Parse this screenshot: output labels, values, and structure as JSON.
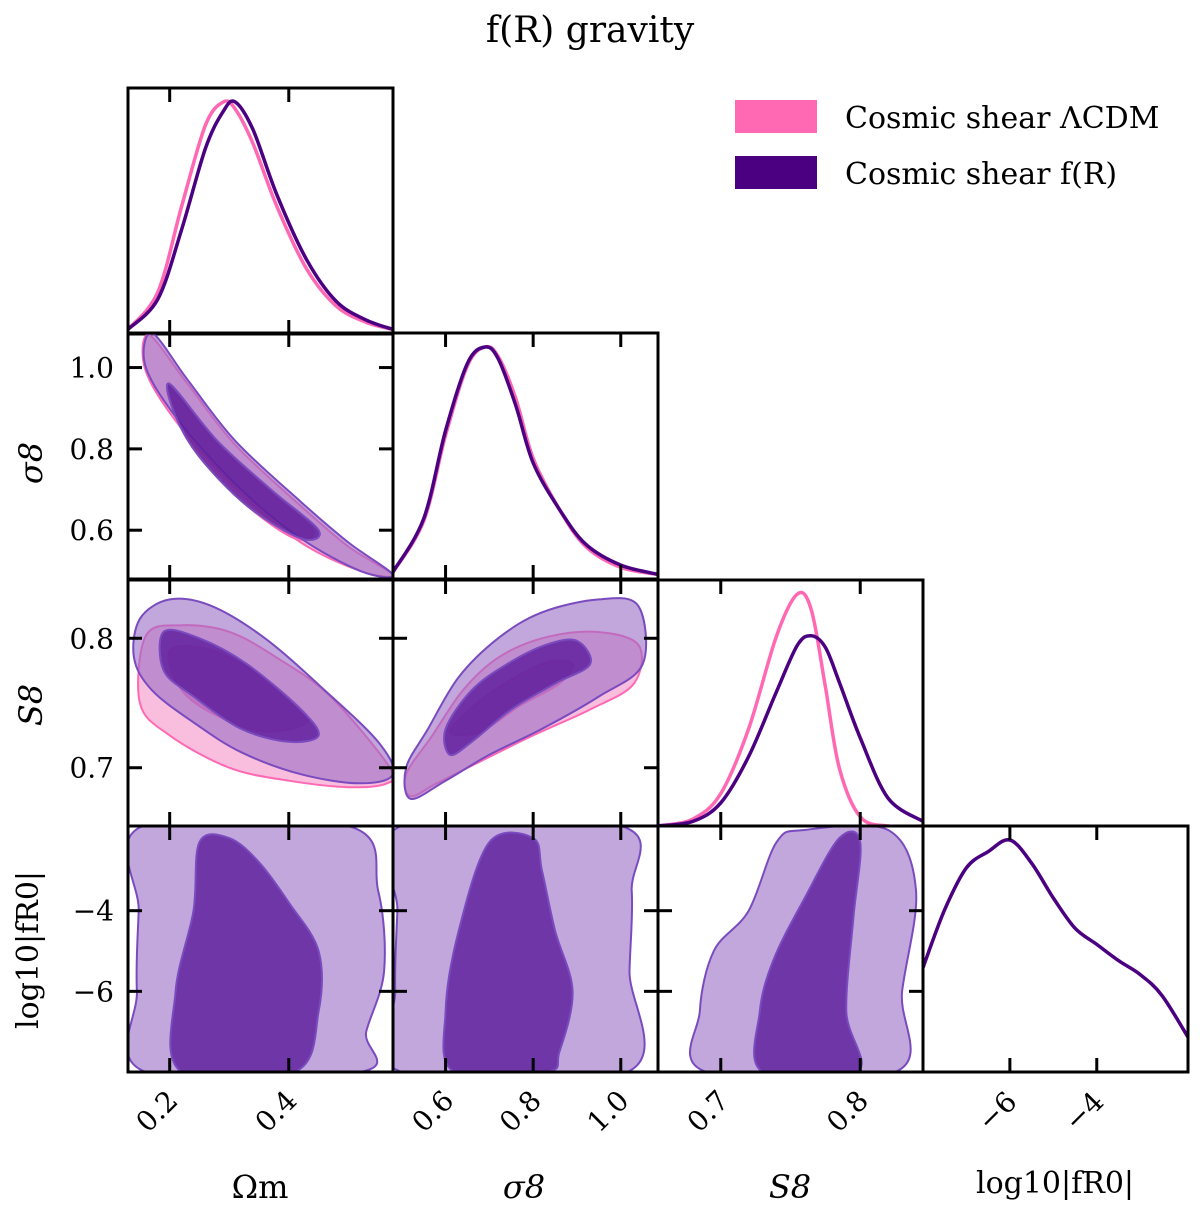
{
  "title": "f(R) gravity",
  "legend": {
    "placement": "top-right",
    "entries": [
      {
        "label": "Cosmic shear ΛCDM",
        "color": "#ff69b4"
      },
      {
        "label": "Cosmic shear f(R)",
        "color": "#4b0082"
      }
    ]
  },
  "colors": {
    "lcdm_line": "#ff69b4",
    "lcdm_outer_fill": "#f7a8d3",
    "lcdm_inner_fill": "#f06bb7",
    "fr_line": "#4b0082",
    "fr_contour_edge": "#7a4bbf",
    "fr_outer_fill": "#9a6dc5",
    "fr_inner_fill": "#5a1a9a"
  },
  "chart_data": {
    "type": "triangle (corner) plot",
    "parameters": [
      {
        "name": "Omega_m",
        "label": "Ωm",
        "range": [
          0.13,
          0.575
        ],
        "ticks": [
          0.2,
          0.4
        ],
        "tick_labels": [
          "0.2",
          "0.4"
        ]
      },
      {
        "name": "sigma_8",
        "label": "σ8",
        "range": [
          0.48,
          1.085
        ],
        "ticks": [
          0.6,
          0.8,
          1.0
        ],
        "tick_labels": [
          "0.6",
          "0.8",
          "1.0"
        ]
      },
      {
        "name": "S_8",
        "label": "S8",
        "range": [
          0.655,
          0.845
        ],
        "ticks": [
          0.7,
          0.8
        ],
        "tick_labels": [
          "0.7",
          "0.8"
        ]
      },
      {
        "name": "log10_fR0",
        "label": "log10|fR0|",
        "range": [
          -8.0,
          -1.9
        ],
        "ticks": [
          -6,
          -4
        ],
        "tick_labels": [
          "−6",
          "−4"
        ]
      }
    ],
    "y_axis_ticks": {
      "sigma_8": [
        "1.0",
        "0.8",
        "0.6"
      ],
      "S_8": [
        "0.8",
        "0.7"
      ],
      "log10_fR0": [
        "−4",
        "−6"
      ]
    },
    "marginals": {
      "Omega_m": {
        "LCDM": {
          "x": [
            0.13,
            0.18,
            0.22,
            0.26,
            0.29,
            0.31,
            0.34,
            0.38,
            0.43,
            0.48,
            0.53,
            0.575
          ],
          "y": [
            0.02,
            0.18,
            0.55,
            0.9,
            1.0,
            0.97,
            0.82,
            0.55,
            0.28,
            0.12,
            0.05,
            0.02
          ]
        },
        "fR": {
          "x": [
            0.13,
            0.18,
            0.22,
            0.26,
            0.29,
            0.31,
            0.34,
            0.38,
            0.43,
            0.48,
            0.53,
            0.575
          ],
          "y": [
            0.02,
            0.15,
            0.45,
            0.8,
            0.96,
            1.0,
            0.88,
            0.6,
            0.32,
            0.14,
            0.06,
            0.02
          ]
        }
      },
      "sigma_8": {
        "LCDM": {
          "x": [
            0.48,
            0.55,
            0.6,
            0.65,
            0.69,
            0.72,
            0.76,
            0.8,
            0.86,
            0.92,
            1.0,
            1.085
          ],
          "y": [
            0.03,
            0.25,
            0.62,
            0.92,
            1.0,
            0.96,
            0.78,
            0.52,
            0.3,
            0.14,
            0.05,
            0.02
          ]
        },
        "fR": {
          "x": [
            0.48,
            0.55,
            0.6,
            0.65,
            0.69,
            0.72,
            0.76,
            0.8,
            0.86,
            0.92,
            1.0,
            1.085
          ],
          "y": [
            0.03,
            0.26,
            0.64,
            0.93,
            1.0,
            0.95,
            0.75,
            0.5,
            0.3,
            0.15,
            0.06,
            0.02
          ]
        }
      },
      "S_8": {
        "LCDM": {
          "x": [
            0.655,
            0.68,
            0.7,
            0.72,
            0.74,
            0.755,
            0.765,
            0.775,
            0.785,
            0.8,
            0.82,
            0.845
          ],
          "y": [
            0.0,
            0.03,
            0.14,
            0.42,
            0.82,
            1.0,
            0.93,
            0.6,
            0.25,
            0.04,
            0.0,
            0.0
          ]
        },
        "fR": {
          "x": [
            0.655,
            0.68,
            0.7,
            0.72,
            0.74,
            0.755,
            0.765,
            0.775,
            0.785,
            0.8,
            0.82,
            0.845
          ],
          "y": [
            0.0,
            0.02,
            0.1,
            0.3,
            0.58,
            0.78,
            0.82,
            0.77,
            0.62,
            0.38,
            0.12,
            0.02
          ]
        }
      },
      "log10_fR0": {
        "fR": {
          "x": [
            -8.0,
            -7.5,
            -7.0,
            -6.5,
            -6.0,
            -5.5,
            -5.0,
            -4.5,
            -4.0,
            -3.5,
            -3.0,
            -2.5,
            -1.9
          ],
          "y": [
            0.45,
            0.7,
            0.88,
            0.95,
            1.0,
            0.9,
            0.75,
            0.62,
            0.55,
            0.48,
            0.42,
            0.33,
            0.15
          ]
        }
      }
    },
    "contours": {
      "Omega_m__sigma_8": {
        "fR_outer": [
          [
            0.17,
            1.085
          ],
          [
            0.23,
            0.97
          ],
          [
            0.31,
            0.82
          ],
          [
            0.42,
            0.67
          ],
          [
            0.5,
            0.57
          ],
          [
            0.575,
            0.49
          ],
          [
            0.52,
            0.5
          ],
          [
            0.42,
            0.58
          ],
          [
            0.32,
            0.7
          ],
          [
            0.22,
            0.86
          ],
          [
            0.16,
            1.0
          ]
        ],
        "fR_inner": [
          [
            0.2,
            0.96
          ],
          [
            0.28,
            0.82
          ],
          [
            0.37,
            0.7
          ],
          [
            0.45,
            0.6
          ],
          [
            0.42,
            0.58
          ],
          [
            0.33,
            0.66
          ],
          [
            0.25,
            0.78
          ],
          [
            0.21,
            0.88
          ]
        ],
        "LCDM_outer": [
          [
            0.165,
            1.08
          ],
          [
            0.23,
            0.96
          ],
          [
            0.31,
            0.81
          ],
          [
            0.42,
            0.66
          ],
          [
            0.5,
            0.56
          ],
          [
            0.575,
            0.49
          ],
          [
            0.52,
            0.5
          ],
          [
            0.42,
            0.57
          ],
          [
            0.32,
            0.69
          ],
          [
            0.22,
            0.85
          ],
          [
            0.16,
            0.99
          ]
        ],
        "LCDM_inner": [
          [
            0.2,
            0.95
          ],
          [
            0.28,
            0.81
          ],
          [
            0.37,
            0.69
          ],
          [
            0.44,
            0.6
          ],
          [
            0.41,
            0.58
          ],
          [
            0.33,
            0.66
          ],
          [
            0.25,
            0.78
          ],
          [
            0.21,
            0.88
          ]
        ]
      },
      "Omega_m__S_8": {
        "fR_outer": [
          [
            0.15,
            0.815
          ],
          [
            0.2,
            0.83
          ],
          [
            0.27,
            0.825
          ],
          [
            0.36,
            0.8
          ],
          [
            0.46,
            0.76
          ],
          [
            0.55,
            0.72
          ],
          [
            0.575,
            0.695
          ],
          [
            0.52,
            0.688
          ],
          [
            0.42,
            0.695
          ],
          [
            0.32,
            0.712
          ],
          [
            0.24,
            0.735
          ],
          [
            0.17,
            0.76
          ],
          [
            0.14,
            0.785
          ]
        ],
        "fR_inner": [
          [
            0.19,
            0.805
          ],
          [
            0.25,
            0.8
          ],
          [
            0.33,
            0.78
          ],
          [
            0.42,
            0.745
          ],
          [
            0.45,
            0.725
          ],
          [
            0.4,
            0.72
          ],
          [
            0.32,
            0.73
          ],
          [
            0.24,
            0.755
          ],
          [
            0.19,
            0.775
          ]
        ],
        "LCDM_outer": [
          [
            0.16,
            0.802
          ],
          [
            0.22,
            0.81
          ],
          [
            0.3,
            0.805
          ],
          [
            0.38,
            0.785
          ],
          [
            0.47,
            0.755
          ],
          [
            0.57,
            0.7
          ],
          [
            0.565,
            0.688
          ],
          [
            0.5,
            0.685
          ],
          [
            0.4,
            0.69
          ],
          [
            0.3,
            0.7
          ],
          [
            0.2,
            0.725
          ],
          [
            0.15,
            0.75
          ]
        ],
        "LCDM_inner": [
          [
            0.2,
            0.79
          ],
          [
            0.26,
            0.792
          ],
          [
            0.34,
            0.775
          ],
          [
            0.41,
            0.75
          ],
          [
            0.43,
            0.735
          ],
          [
            0.36,
            0.728
          ],
          [
            0.28,
            0.74
          ],
          [
            0.22,
            0.76
          ]
        ]
      },
      "sigma_8__S_8": {
        "fR_outer": [
          [
            0.51,
            0.7
          ],
          [
            0.56,
            0.73
          ],
          [
            0.63,
            0.77
          ],
          [
            0.72,
            0.8
          ],
          [
            0.82,
            0.82
          ],
          [
            0.95,
            0.83
          ],
          [
            1.04,
            0.825
          ],
          [
            1.05,
            0.78
          ],
          [
            0.95,
            0.755
          ],
          [
            0.82,
            0.73
          ],
          [
            0.7,
            0.71
          ],
          [
            0.6,
            0.69
          ],
          [
            0.52,
            0.676
          ]
        ],
        "fR_inner": [
          [
            0.6,
            0.73
          ],
          [
            0.66,
            0.76
          ],
          [
            0.74,
            0.78
          ],
          [
            0.83,
            0.795
          ],
          [
            0.9,
            0.798
          ],
          [
            0.93,
            0.78
          ],
          [
            0.85,
            0.765
          ],
          [
            0.75,
            0.745
          ],
          [
            0.66,
            0.72
          ],
          [
            0.61,
            0.71
          ]
        ],
        "LCDM_outer": [
          [
            0.51,
            0.695
          ],
          [
            0.57,
            0.725
          ],
          [
            0.64,
            0.76
          ],
          [
            0.72,
            0.785
          ],
          [
            0.82,
            0.8
          ],
          [
            0.94,
            0.805
          ],
          [
            1.04,
            0.795
          ],
          [
            1.03,
            0.765
          ],
          [
            0.93,
            0.745
          ],
          [
            0.8,
            0.725
          ],
          [
            0.68,
            0.705
          ],
          [
            0.58,
            0.688
          ],
          [
            0.52,
            0.678
          ]
        ],
        "LCDM_inner": [
          [
            0.61,
            0.728
          ],
          [
            0.68,
            0.752
          ],
          [
            0.76,
            0.77
          ],
          [
            0.84,
            0.782
          ],
          [
            0.89,
            0.78
          ],
          [
            0.86,
            0.765
          ],
          [
            0.77,
            0.748
          ],
          [
            0.68,
            0.728
          ]
        ]
      },
      "Omega_m__log10_fR0": {
        "fR_outer": [
          [
            0.155,
            -1.9
          ],
          [
            0.5,
            -1.9
          ],
          [
            0.55,
            -3.5
          ],
          [
            0.56,
            -5.5
          ],
          [
            0.53,
            -7.0
          ],
          [
            0.52,
            -8.0
          ],
          [
            0.16,
            -8.0
          ],
          [
            0.145,
            -6.0
          ],
          [
            0.148,
            -4.0
          ]
        ],
        "fR_inner": [
          [
            0.25,
            -2.3
          ],
          [
            0.3,
            -2.2
          ],
          [
            0.35,
            -2.8
          ],
          [
            0.4,
            -3.8
          ],
          [
            0.45,
            -5.0
          ],
          [
            0.45,
            -6.5
          ],
          [
            0.41,
            -8.0
          ],
          [
            0.22,
            -8.0
          ],
          [
            0.21,
            -6.0
          ],
          [
            0.24,
            -4.0
          ]
        ]
      },
      "sigma_8__log10_fR0": {
        "fR_outer": [
          [
            0.5,
            -1.9
          ],
          [
            1.0,
            -1.9
          ],
          [
            1.025,
            -3.5
          ],
          [
            1.02,
            -5.5
          ],
          [
            1.015,
            -8.0
          ],
          [
            0.5,
            -8.0
          ],
          [
            0.485,
            -6.0
          ],
          [
            0.49,
            -4.0
          ]
        ],
        "fR_inner": [
          [
            0.7,
            -2.3
          ],
          [
            0.8,
            -2.2
          ],
          [
            0.82,
            -3.0
          ],
          [
            0.85,
            -4.5
          ],
          [
            0.89,
            -6.0
          ],
          [
            0.86,
            -7.5
          ],
          [
            0.83,
            -8.0
          ],
          [
            0.62,
            -8.0
          ],
          [
            0.6,
            -6.5
          ],
          [
            0.63,
            -4.5
          ]
        ]
      },
      "S_8__log10_fR0": {
        "fR_outer": [
          [
            0.685,
            -6.5
          ],
          [
            0.695,
            -5.0
          ],
          [
            0.72,
            -4.0
          ],
          [
            0.74,
            -2.3
          ],
          [
            0.76,
            -2.0
          ],
          [
            0.82,
            -2.0
          ],
          [
            0.84,
            -3.5
          ],
          [
            0.83,
            -6.0
          ],
          [
            0.825,
            -8.0
          ],
          [
            0.69,
            -8.0
          ]
        ],
        "fR_inner": [
          [
            0.728,
            -6.5
          ],
          [
            0.738,
            -5.2
          ],
          [
            0.76,
            -3.7
          ],
          [
            0.785,
            -2.2
          ],
          [
            0.8,
            -2.3
          ],
          [
            0.795,
            -4.2
          ],
          [
            0.79,
            -6.5
          ],
          [
            0.798,
            -8.0
          ],
          [
            0.73,
            -8.0
          ]
        ]
      }
    }
  }
}
